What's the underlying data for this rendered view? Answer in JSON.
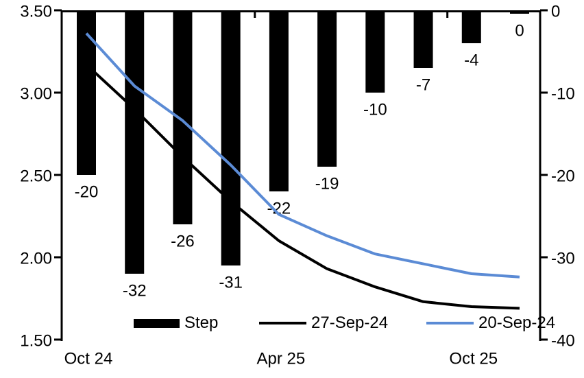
{
  "chart_data": {
    "type": "combo-bar-line",
    "title": "",
    "categories_count": 10,
    "left_axis": {
      "tick_labels": [
        "3.50",
        "3.00",
        "2.50",
        "2.00",
        "1.50"
      ],
      "max": 3.5,
      "min": 1.5
    },
    "right_axis": {
      "tick_labels": [
        "0",
        "-10",
        "-20",
        "-30",
        "-40"
      ],
      "max": 0,
      "min": -40
    },
    "x_axis": {
      "labels": [
        "Oct 24",
        "Apr 25",
        "Oct 25"
      ],
      "label_category_indexes": [
        0,
        4,
        8
      ],
      "boundary_tick_category_indexes": [
        4,
        8
      ]
    },
    "series": [
      {
        "name": "Step",
        "type": "bar",
        "axis": "right",
        "color": "#000000",
        "values": [
          -20,
          -32,
          -26,
          -31,
          -22,
          -19,
          -10,
          -7,
          -4,
          0
        ],
        "data_labels": [
          "-20",
          "-32",
          "-26",
          "-31",
          "-22",
          "-19",
          "-10",
          "-7",
          "-4",
          "0"
        ]
      },
      {
        "name": "27-Sep-24",
        "type": "line",
        "axis": "left",
        "color": "#000000",
        "values": [
          3.17,
          2.9,
          2.61,
          2.34,
          2.1,
          1.93,
          1.82,
          1.73,
          1.7,
          1.69
        ]
      },
      {
        "name": "20-Sep-24",
        "type": "line",
        "axis": "left",
        "color": "#5B8BD5",
        "values": [
          3.36,
          3.04,
          2.83,
          2.56,
          2.26,
          2.13,
          2.02,
          1.96,
          1.9,
          1.88
        ]
      }
    ],
    "legend": [
      {
        "label": "Step",
        "swatch": "bar",
        "color": "#000000"
      },
      {
        "label": "27-Sep-24",
        "swatch": "line",
        "color": "#000000"
      },
      {
        "label": "20-Sep-24",
        "swatch": "line",
        "color": "#5B8BD5"
      }
    ],
    "colors": {
      "bar": "#000000",
      "line_27sep": "#000000",
      "line_20sep": "#5B8BD5",
      "axis": "#000000"
    }
  }
}
